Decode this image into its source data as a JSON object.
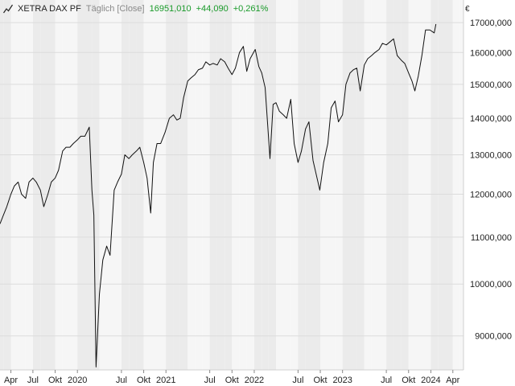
{
  "header": {
    "name": "XETRA DAX PF",
    "interval": "Täglich [Close]",
    "last": "16951,010",
    "change": "+44,090",
    "change_pct": "+0,261%",
    "icon": "line-chart-icon"
  },
  "colors": {
    "line": "#111111",
    "band_dark": "#ebebeb",
    "band_light": "#f6f6f6",
    "grid": "#dcdcdc",
    "positive": "#1a9a2a"
  },
  "axis": {
    "currency": "€"
  },
  "chart_data": {
    "type": "line",
    "title": "XETRA DAX PF",
    "xlabel": "",
    "ylabel": "",
    "yscale": "log",
    "ylim": [
      8400,
      17800
    ],
    "xlim": [
      "2019-02-15",
      "2024-05-15"
    ],
    "grid": true,
    "yticks": [
      {
        "value": 9000,
        "label": "9000,000"
      },
      {
        "value": 10000,
        "label": "10000,000"
      },
      {
        "value": 11000,
        "label": "11000,000"
      },
      {
        "value": 12000,
        "label": "12000,000"
      },
      {
        "value": 13000,
        "label": "13000,000"
      },
      {
        "value": 14000,
        "label": "14000,000"
      },
      {
        "value": 15000,
        "label": "15000,000"
      },
      {
        "value": 16000,
        "label": "16000,000"
      },
      {
        "value": 17000,
        "label": "17000,000"
      }
    ],
    "xticks": [
      {
        "date": "2019-04-01",
        "label": "Apr"
      },
      {
        "date": "2019-07-01",
        "label": "Jul"
      },
      {
        "date": "2019-10-01",
        "label": "Okt"
      },
      {
        "date": "2020-01-01",
        "label": "2020"
      },
      {
        "date": "2020-07-01",
        "label": "Jul"
      },
      {
        "date": "2020-10-01",
        "label": "Okt"
      },
      {
        "date": "2021-01-01",
        "label": "2021"
      },
      {
        "date": "2021-07-01",
        "label": "Jul"
      },
      {
        "date": "2021-10-01",
        "label": "Okt"
      },
      {
        "date": "2022-01-01",
        "label": "2022"
      },
      {
        "date": "2022-07-01",
        "label": "Jul"
      },
      {
        "date": "2022-10-01",
        "label": "Okt"
      },
      {
        "date": "2023-01-01",
        "label": "2023"
      },
      {
        "date": "2023-07-01",
        "label": "Jul"
      },
      {
        "date": "2023-10-01",
        "label": "Okt"
      },
      {
        "date": "2024-01-01",
        "label": "2024"
      },
      {
        "date": "2024-04-01",
        "label": "Apr"
      }
    ],
    "series": [
      {
        "x": [
          "2019-02-15",
          "2019-03-01",
          "2019-03-15",
          "2019-04-01",
          "2019-04-15",
          "2019-05-01",
          "2019-05-15",
          "2019-06-01",
          "2019-06-15",
          "2019-07-01",
          "2019-07-15",
          "2019-08-01",
          "2019-08-15",
          "2019-09-01",
          "2019-09-15",
          "2019-10-01",
          "2019-10-15",
          "2019-11-01",
          "2019-11-15",
          "2019-12-01",
          "2019-12-15",
          "2020-01-01",
          "2020-01-15",
          "2020-02-01",
          "2020-02-19",
          "2020-03-01",
          "2020-03-09",
          "2020-03-18",
          "2020-04-01",
          "2020-04-15",
          "2020-05-01",
          "2020-05-15",
          "2020-06-01",
          "2020-06-15",
          "2020-07-01",
          "2020-07-15",
          "2020-08-01",
          "2020-08-15",
          "2020-09-01",
          "2020-09-15",
          "2020-10-01",
          "2020-10-15",
          "2020-10-30",
          "2020-11-10",
          "2020-11-25",
          "2020-12-10",
          "2020-12-28",
          "2021-01-15",
          "2021-02-01",
          "2021-02-15",
          "2021-03-01",
          "2021-03-15",
          "2021-04-01",
          "2021-04-15",
          "2021-05-01",
          "2021-05-15",
          "2021-06-01",
          "2021-06-15",
          "2021-07-01",
          "2021-07-15",
          "2021-08-01",
          "2021-08-15",
          "2021-09-01",
          "2021-09-15",
          "2021-10-01",
          "2021-10-15",
          "2021-11-01",
          "2021-11-17",
          "2021-12-01",
          "2021-12-15",
          "2022-01-05",
          "2022-01-20",
          "2022-02-01",
          "2022-02-15",
          "2022-03-07",
          "2022-03-20",
          "2022-04-01",
          "2022-04-15",
          "2022-05-01",
          "2022-05-15",
          "2022-06-01",
          "2022-06-15",
          "2022-07-01",
          "2022-07-15",
          "2022-08-01",
          "2022-08-15",
          "2022-09-01",
          "2022-09-29",
          "2022-10-15",
          "2022-11-01",
          "2022-11-15",
          "2022-12-01",
          "2022-12-15",
          "2023-01-01",
          "2023-01-15",
          "2023-02-01",
          "2023-02-15",
          "2023-03-01",
          "2023-03-15",
          "2023-04-01",
          "2023-04-15",
          "2023-05-01",
          "2023-05-15",
          "2023-06-01",
          "2023-06-15",
          "2023-07-01",
          "2023-07-31",
          "2023-08-15",
          "2023-09-01",
          "2023-09-15",
          "2023-10-01",
          "2023-10-15",
          "2023-10-27",
          "2023-11-10",
          "2023-11-25",
          "2023-12-10",
          "2023-12-28",
          "2024-01-15",
          "2024-01-22"
        ],
        "y": [
          11300,
          11500,
          11700,
          12000,
          12200,
          12300,
          12000,
          11900,
          12300,
          12400,
          12300,
          12100,
          11700,
          12000,
          12300,
          12400,
          12600,
          13100,
          13200,
          13200,
          13300,
          13400,
          13500,
          13500,
          13750,
          12100,
          11500,
          8450,
          9800,
          10500,
          10800,
          10600,
          12100,
          12300,
          12500,
          13000,
          12900,
          13000,
          13100,
          13200,
          12800,
          12400,
          11550,
          12800,
          13300,
          13300,
          13600,
          14000,
          14100,
          13950,
          14000,
          14600,
          15100,
          15200,
          15300,
          15450,
          15500,
          15700,
          15600,
          15650,
          15600,
          15800,
          15700,
          15500,
          15300,
          15500,
          16000,
          16200,
          15400,
          15800,
          16100,
          15550,
          15350,
          14900,
          12900,
          14400,
          14450,
          14200,
          14100,
          14000,
          14550,
          13300,
          12800,
          13100,
          13700,
          13900,
          12850,
          12100,
          12800,
          13300,
          14300,
          14500,
          13900,
          14100,
          15000,
          15350,
          15450,
          15500,
          14800,
          15600,
          15800,
          15900,
          16000,
          16100,
          16300,
          16250,
          16450,
          15900,
          15750,
          15650,
          15350,
          15100,
          14800,
          15250,
          15900,
          16750,
          16750,
          16650,
          16951
        ]
      }
    ]
  }
}
